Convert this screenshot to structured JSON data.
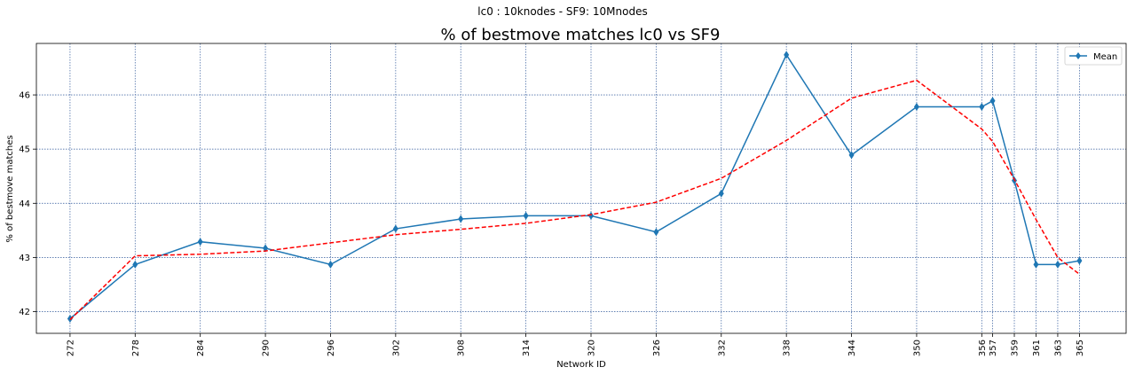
{
  "chart_data": {
    "type": "line",
    "suptitle": "lc0 : 10knodes - SF9: 10Mnodes",
    "title": "% of bestmove matches lc0 vs SF9",
    "xlabel": "Network ID",
    "ylabel": "% of bestmove matches",
    "xlim": [
      268.9,
      369.3
    ],
    "ylim": [
      41.6,
      46.95
    ],
    "xticks": [
      272,
      278,
      284,
      290,
      296,
      302,
      308,
      314,
      320,
      326,
      332,
      338,
      344,
      350,
      356,
      357,
      359,
      361,
      363,
      365
    ],
    "yticks": [
      42,
      43,
      44,
      45,
      46
    ],
    "grid": true,
    "legend_position": "top-right",
    "series": [
      {
        "name": "Mean",
        "color": "#1f77b4",
        "style": "solid",
        "marker": "diamond",
        "x": [
          272,
          278,
          284,
          290,
          296,
          302,
          308,
          314,
          320,
          326,
          332,
          338,
          344,
          350,
          356,
          357,
          359,
          361,
          363,
          365
        ],
        "y": [
          41.87,
          42.87,
          43.29,
          43.17,
          42.87,
          43.53,
          43.71,
          43.77,
          43.77,
          43.47,
          44.18,
          46.74,
          44.89,
          45.78,
          45.78,
          45.89,
          44.42,
          42.87,
          42.87,
          42.94
        ]
      },
      {
        "color": "#ff0000",
        "style": "dashed",
        "x": [
          272,
          278,
          284,
          290,
          296,
          302,
          308,
          314,
          320,
          326,
          332,
          338,
          344,
          350,
          356,
          357,
          359,
          361,
          363,
          365
        ],
        "y": [
          41.85,
          43.03,
          43.06,
          43.12,
          43.27,
          43.42,
          43.52,
          43.63,
          43.79,
          44.02,
          44.46,
          45.16,
          45.94,
          46.27,
          45.37,
          45.14,
          44.44,
          43.7,
          43.0,
          42.69
        ]
      }
    ]
  }
}
